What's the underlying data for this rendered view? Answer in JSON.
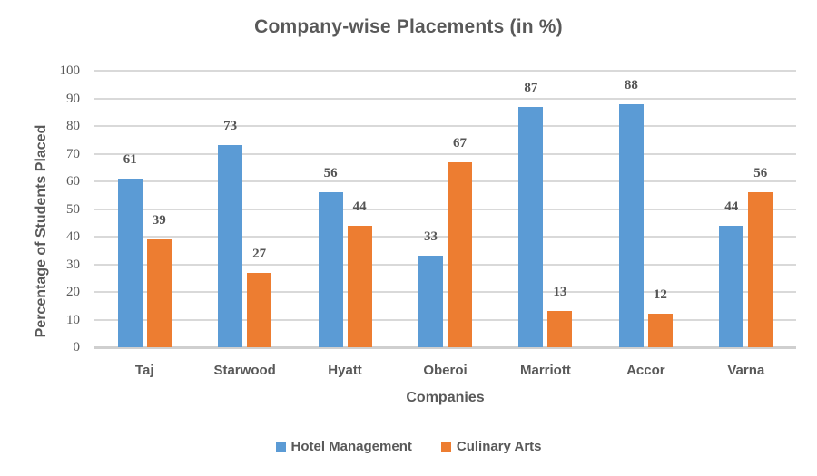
{
  "chart_data": {
    "type": "bar",
    "title": "Company-wise Placements (in %)",
    "xlabel": "Companies",
    "ylabel": "Percentage of Students Placed",
    "categories": [
      "Taj",
      "Starwood",
      "Hyatt",
      "Oberoi",
      "Marriott",
      "Accor",
      "Varna"
    ],
    "series": [
      {
        "name": "Hotel Management",
        "color": "#5B9BD5",
        "values": [
          61,
          73,
          56,
          33,
          87,
          88,
          44
        ]
      },
      {
        "name": "Culinary Arts",
        "color": "#ED7D31",
        "values": [
          39,
          27,
          44,
          67,
          13,
          12,
          56
        ]
      }
    ],
    "ylim": [
      0,
      100
    ],
    "yticks": [
      0,
      10,
      20,
      30,
      40,
      50,
      60,
      70,
      80,
      90,
      100
    ],
    "grid": "horizontal-gridlines",
    "gridline_color": "#D9D9D9",
    "text_color": "#595959",
    "legend_position": "bottom",
    "data_labels": "outside-end"
  }
}
